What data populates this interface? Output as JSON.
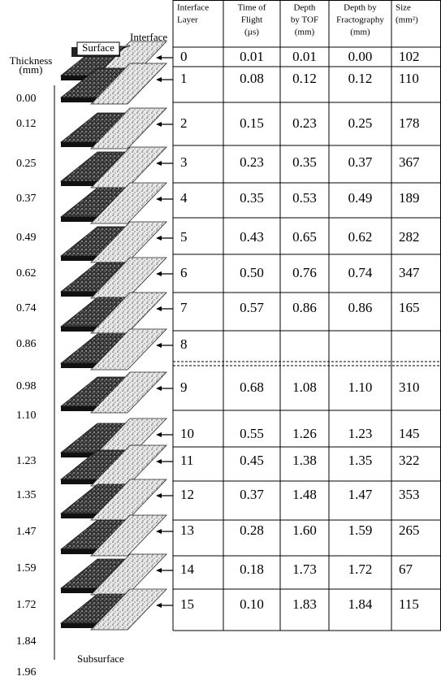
{
  "figure": {
    "labels": {
      "thickness": [
        "Thickness",
        "(mm)"
      ],
      "surface": "Surface",
      "interface": "Interface",
      "subsurface": "Subsurface"
    },
    "thickness_values": [
      "0.00",
      "0.12",
      "0.25",
      "0.37",
      "0.49",
      "0.62",
      "0.74",
      "0.86",
      "0.98",
      "1.10",
      "1.23",
      "1.35",
      "1.47",
      "1.59",
      "1.72",
      "1.84",
      "1.96"
    ],
    "table": {
      "header": [
        [
          "Interface",
          "Layer"
        ],
        [
          "Time of",
          "Flight",
          "(µs)"
        ],
        [
          "Depth",
          "by TOF",
          "(mm)"
        ],
        [
          "Depth by",
          "Fractography",
          "(mm)"
        ],
        [
          "Size",
          "(mm²)"
        ]
      ],
      "rows": [
        [
          "0",
          "0.01",
          "0.01",
          "0.00",
          "102"
        ],
        [
          "1",
          "0.08",
          "0.12",
          "0.12",
          "110"
        ],
        [
          "2",
          "0.15",
          "0.23",
          "0.25",
          "178"
        ],
        [
          "3",
          "0.23",
          "0.35",
          "0.37",
          "367"
        ],
        [
          "4",
          "0.35",
          "0.53",
          "0.49",
          "189"
        ],
        [
          "5",
          "0.43",
          "0.65",
          "0.62",
          "282"
        ],
        [
          "6",
          "0.50",
          "0.76",
          "0.74",
          "347"
        ],
        [
          "7",
          "0.57",
          "0.86",
          "0.86",
          "165"
        ],
        [
          "8"
        ],
        [
          "9",
          "0.68",
          "1.08",
          "1.10",
          "310"
        ],
        [
          "10",
          "0.55",
          "1.26",
          "1.23",
          "145"
        ],
        [
          "11",
          "0.45",
          "1.38",
          "1.35",
          "322"
        ],
        [
          "12",
          "0.37",
          "1.48",
          "1.47",
          "353"
        ],
        [
          "13",
          "0.28",
          "1.60",
          "1.59",
          "265"
        ],
        [
          "14",
          "0.18",
          "1.73",
          "1.72",
          "67"
        ],
        [
          "15",
          "0.10",
          "1.83",
          "1.84",
          "115"
        ]
      ]
    }
  }
}
